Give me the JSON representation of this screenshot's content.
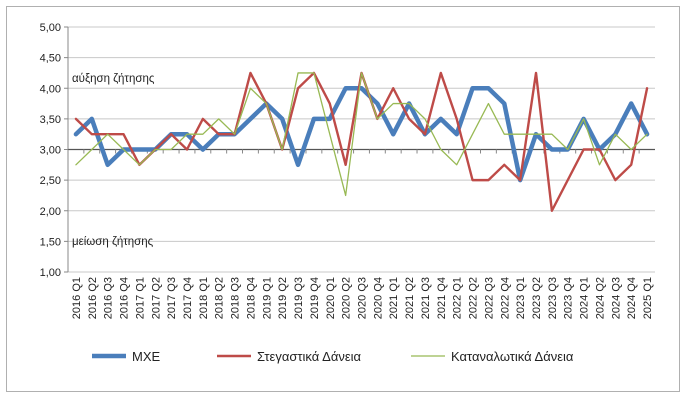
{
  "chart_data": {
    "type": "line",
    "categories": [
      "2016 Q1",
      "2016 Q2",
      "2016 Q3",
      "2016 Q4",
      "2017 Q1",
      "2017 Q2",
      "2017 Q3",
      "2017 Q4",
      "2018 Q1",
      "2018 Q2",
      "2018 Q3",
      "2018 Q4",
      "2019 Q1",
      "2019 Q2",
      "2019 Q3",
      "2019 Q4",
      "2020 Q1",
      "2020 Q2",
      "2020 Q3",
      "2020 Q4",
      "2021 Q1",
      "2021 Q2",
      "2021 Q3",
      "2021 Q4",
      "2022 Q1",
      "2022 Q2",
      "2022 Q3",
      "2022 Q4",
      "2023 Q1",
      "2023 Q2",
      "2023 Q3",
      "2023 Q4",
      "2024 Q1",
      "2024 Q2",
      "2024 Q3",
      "2024 Q4",
      "2025 Q1"
    ],
    "series": [
      {
        "name": "ΜΧΕ",
        "color": "#4a7ebb",
        "width": "thick",
        "values": [
          3.25,
          3.5,
          2.75,
          3.0,
          3.0,
          3.0,
          3.25,
          3.25,
          3.0,
          3.25,
          3.25,
          3.5,
          3.75,
          3.5,
          2.75,
          3.5,
          3.5,
          4.0,
          4.0,
          3.75,
          3.25,
          3.75,
          3.25,
          3.5,
          3.25,
          4.0,
          4.0,
          3.75,
          2.5,
          3.25,
          3.0,
          3.0,
          3.5,
          3.0,
          3.25,
          3.75,
          3.25
        ]
      },
      {
        "name": "Στεγαστικά Δάνεια",
        "color": "#be4b48",
        "width": "medium",
        "values": [
          3.5,
          3.25,
          3.25,
          3.25,
          2.75,
          3.0,
          3.25,
          3.0,
          3.5,
          3.25,
          3.25,
          4.25,
          3.75,
          3.0,
          4.0,
          4.25,
          3.75,
          2.75,
          4.25,
          3.5,
          4.0,
          3.5,
          3.25,
          4.25,
          3.5,
          2.5,
          2.5,
          2.75,
          2.5,
          4.25,
          2.0,
          2.5,
          3.0,
          3.0,
          2.5,
          2.75,
          4.0
        ]
      },
      {
        "name": "Καταναλωτικά Δάνεια",
        "color": "#98b954",
        "width": "thin",
        "values": [
          2.75,
          3.0,
          3.25,
          3.0,
          2.75,
          3.0,
          3.0,
          3.25,
          3.25,
          3.5,
          3.25,
          4.0,
          3.75,
          3.0,
          4.25,
          4.25,
          3.25,
          2.25,
          4.25,
          3.5,
          3.75,
          3.75,
          3.5,
          3.0,
          2.75,
          3.25,
          3.75,
          3.25,
          3.25,
          3.25,
          3.25,
          3.0,
          3.5,
          2.75,
          3.25,
          3.0,
          3.25
        ]
      }
    ],
    "ylim": [
      1.0,
      5.0
    ],
    "yticks": [
      "1,00",
      "1,50",
      "2,00",
      "2,50",
      "3,00",
      "3,50",
      "4,00",
      "4,50",
      "5,00"
    ],
    "grid": "horizontal",
    "legend_position": "bottom",
    "annotations": {
      "upper": "αύξηση ζήτησης",
      "lower": "μείωση ζήτησης"
    }
  }
}
